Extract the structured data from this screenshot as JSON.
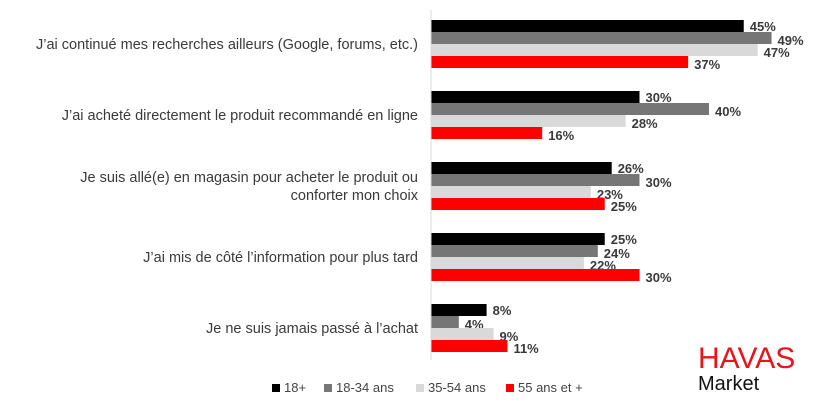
{
  "chart_data": {
    "type": "bar",
    "orientation": "horizontal",
    "categories": [
      [
        "J’ai continué mes recherches ailleurs (Google, forums, etc.)"
      ],
      [
        "J’ai acheté directement le produit recommandé en ligne"
      ],
      [
        "Je suis allé(e) en magasin pour acheter le produit ou",
        "conforter mon choix"
      ],
      [
        "J’ai mis de côté l’information pour plus tard"
      ],
      [
        "Je ne suis jamais passé à l’achat"
      ]
    ],
    "series": [
      {
        "name": "18+",
        "color": "#000000",
        "values": [
          45,
          30,
          26,
          25,
          8
        ]
      },
      {
        "name": "18-34 ans",
        "color": "#767676",
        "values": [
          49,
          40,
          30,
          24,
          4
        ]
      },
      {
        "name": "35-54 ans",
        "color": "#d9d9d9",
        "values": [
          47,
          28,
          23,
          22,
          9
        ]
      },
      {
        "name": "55 ans et +",
        "color": "#ff0000",
        "values": [
          37,
          16,
          25,
          30,
          11
        ]
      }
    ],
    "value_suffix": "%",
    "xlim": [
      0,
      55
    ],
    "grid": false,
    "legend": "bottom"
  },
  "logo": {
    "brand": "HAVAS",
    "sub": "Market"
  }
}
